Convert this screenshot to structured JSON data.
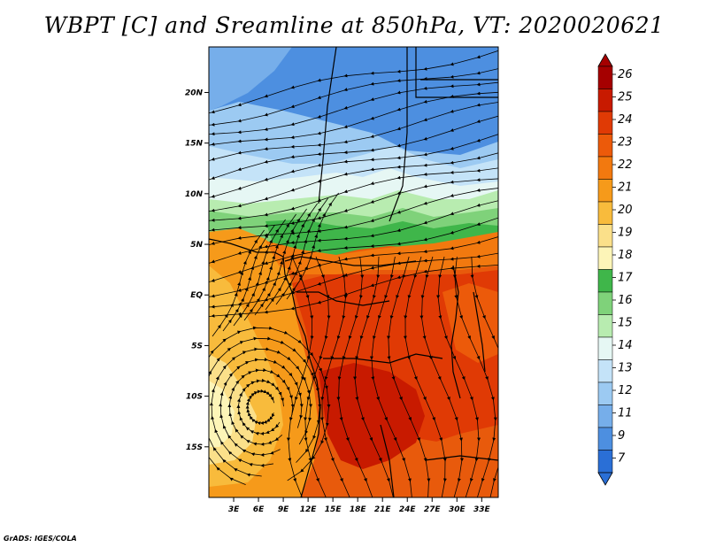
{
  "title": "WBPT [C] and Sreamline at 850hPa, VT: 2020020621",
  "credit": "GrADS: IGES/COLA",
  "map": {
    "lon_range": [
      0,
      35
    ],
    "lat_range": [
      -20,
      24.5
    ],
    "lat_ticks": [
      {
        "value": 20,
        "label": "20N"
      },
      {
        "value": 15,
        "label": "15N"
      },
      {
        "value": 10,
        "label": "10N"
      },
      {
        "value": 5,
        "label": "5N"
      },
      {
        "value": 0,
        "label": "EQ"
      },
      {
        "value": -5,
        "label": "5S"
      },
      {
        "value": -10,
        "label": "10S"
      },
      {
        "value": -15,
        "label": "15S"
      }
    ],
    "lon_ticks": [
      {
        "value": 3,
        "label": "3E"
      },
      {
        "value": 6,
        "label": "6E"
      },
      {
        "value": 9,
        "label": "9E"
      },
      {
        "value": 12,
        "label": "12E"
      },
      {
        "value": 15,
        "label": "15E"
      },
      {
        "value": 18,
        "label": "18E"
      },
      {
        "value": 21,
        "label": "21E"
      },
      {
        "value": 24,
        "label": "24E"
      },
      {
        "value": 27,
        "label": "27E"
      },
      {
        "value": 30,
        "label": "30E"
      },
      {
        "value": 33,
        "label": "33E"
      }
    ]
  },
  "colorbar": {
    "levels": [
      "26",
      "25",
      "24",
      "23",
      "22",
      "21",
      "20",
      "19",
      "18",
      "17",
      "16",
      "15",
      "14",
      "13",
      "12",
      "11",
      "9",
      "7"
    ],
    "colors": [
      "#a50000",
      "#c81a00",
      "#e03a05",
      "#ec5a0a",
      "#f2790f",
      "#f69a1a",
      "#f8bb3c",
      "#fbe08a",
      "#fdf5b8",
      "#3fb64a",
      "#7fd27a",
      "#b8ecb0",
      "#e6f7f4",
      "#c4e3f8",
      "#9ccaf2",
      "#76aeea",
      "#4d8fe0",
      "#2a6fd6"
    ],
    "top_arrow_color": "#a50000",
    "bottom_arrow_color": "#2a6fd6"
  }
}
